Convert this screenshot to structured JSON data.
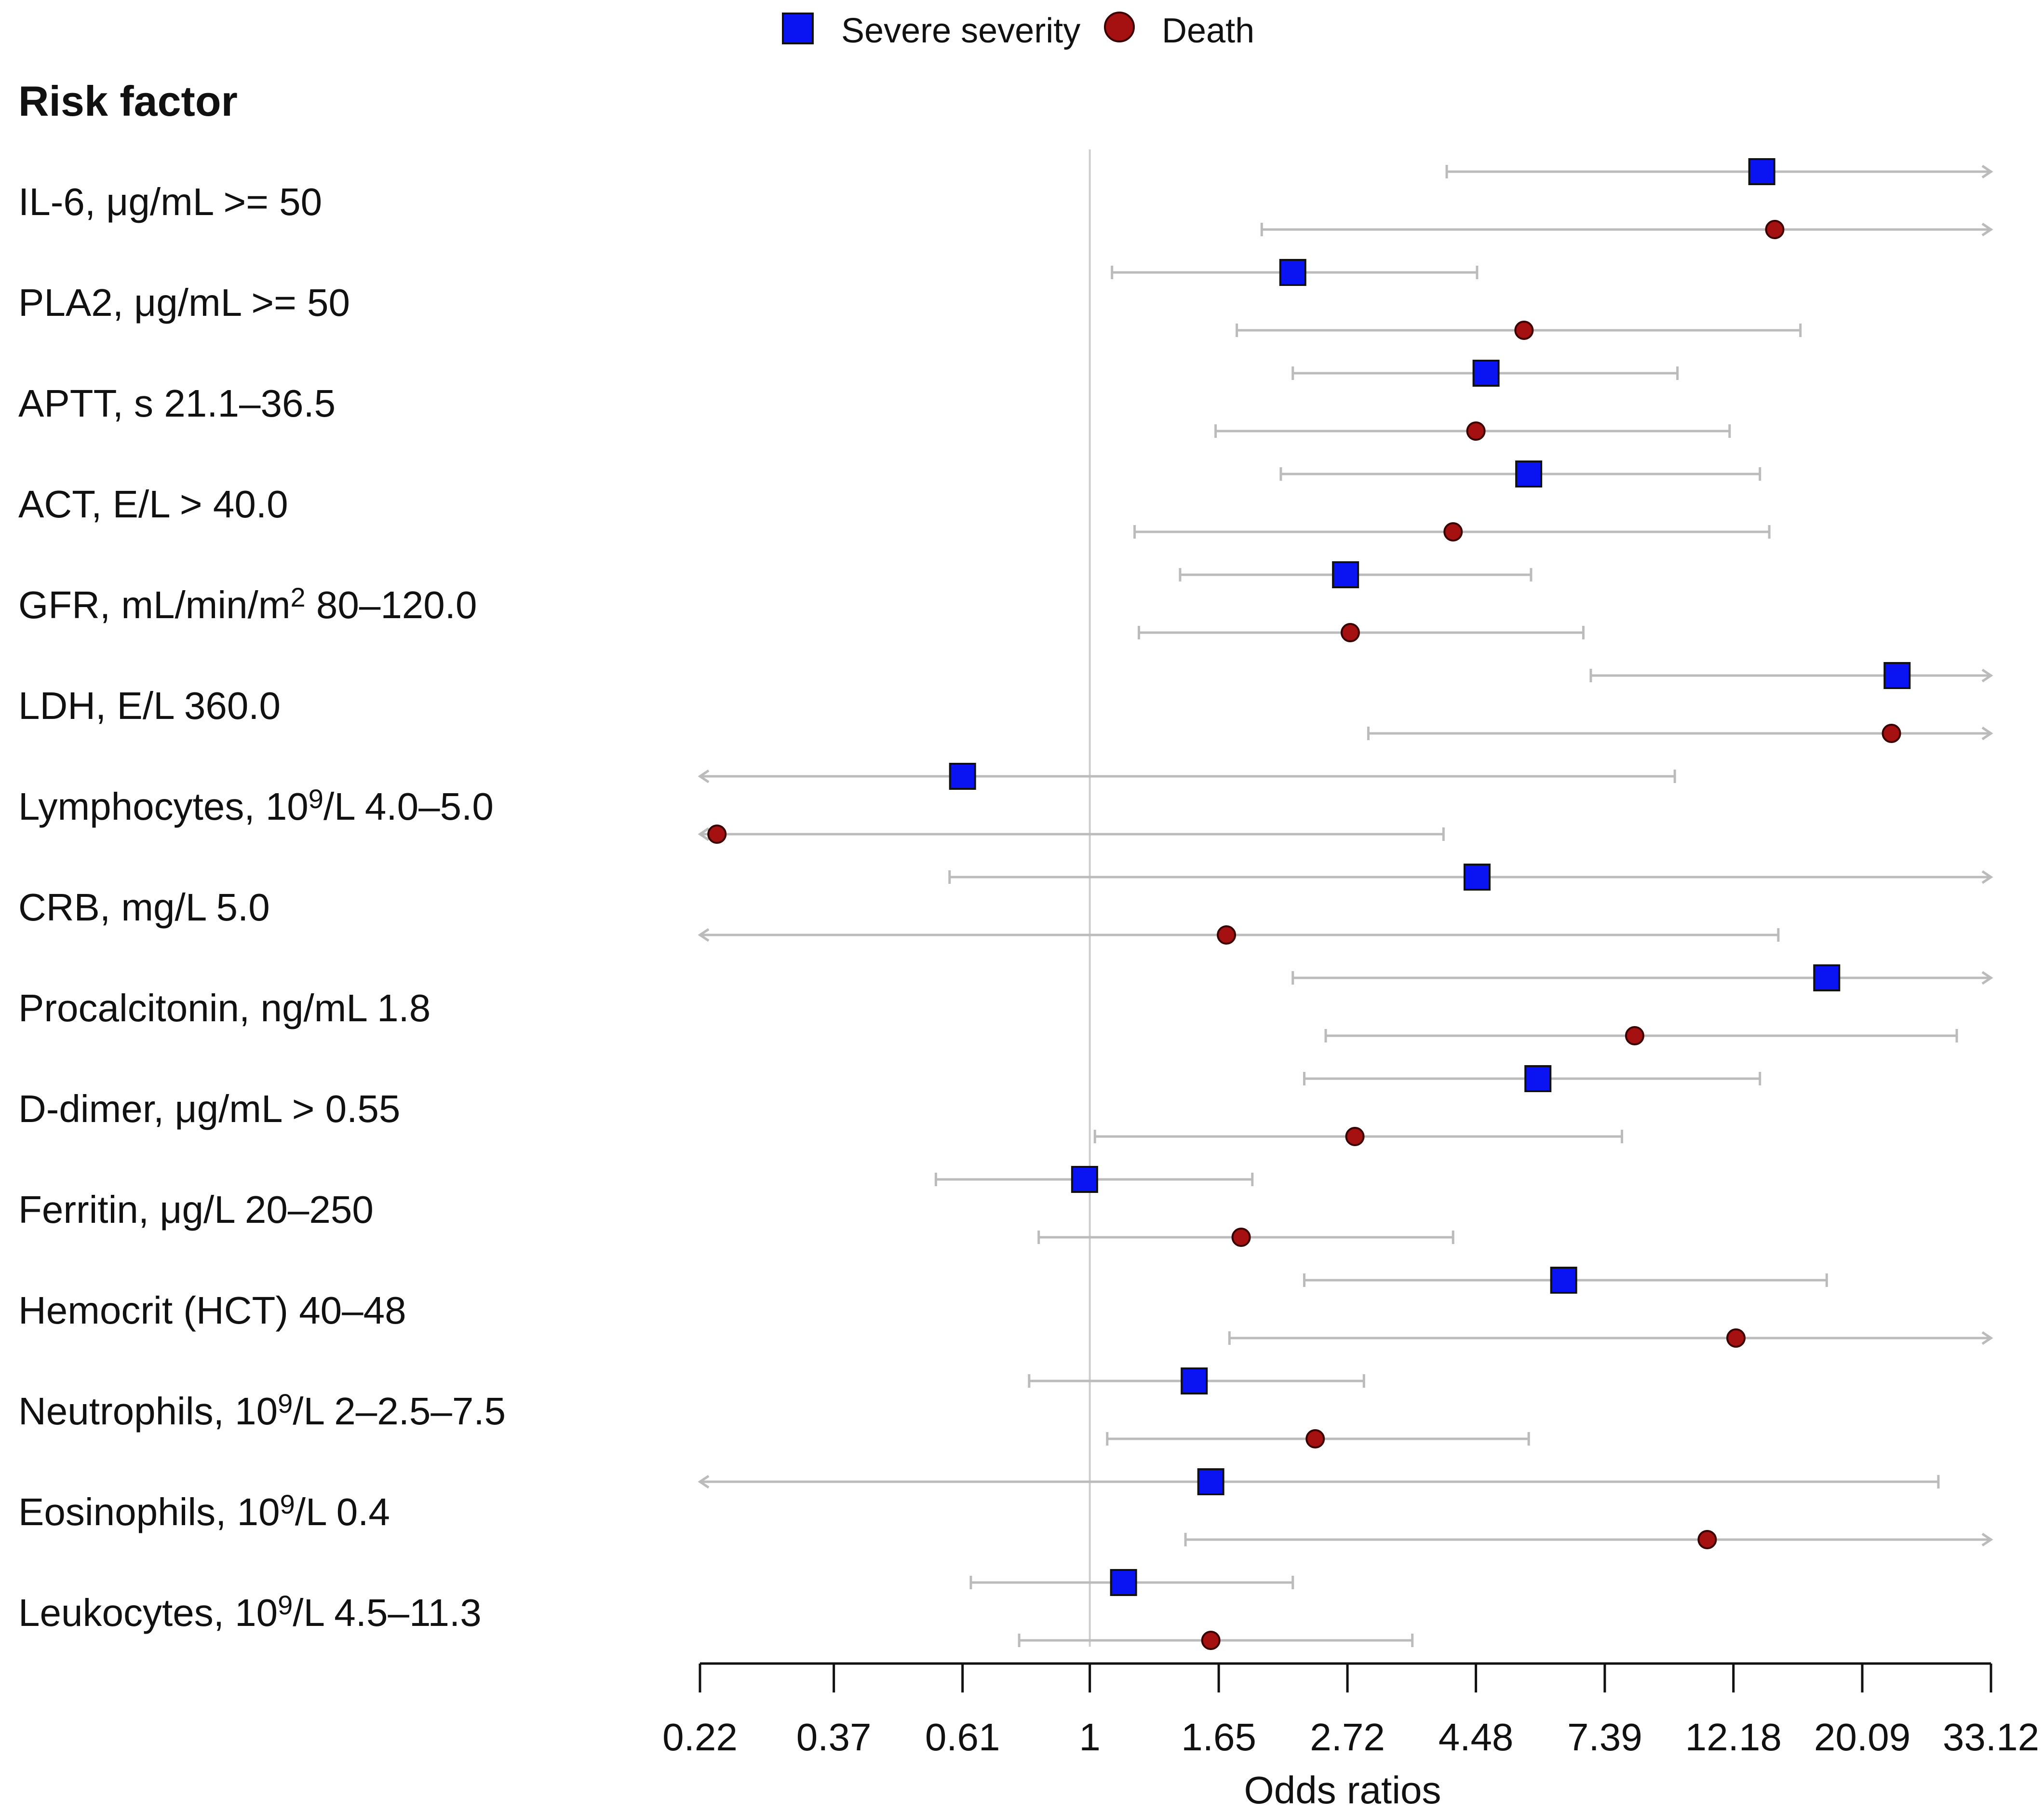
{
  "colors": {
    "severe": "#0a14f2",
    "death": "#a51010",
    "ci_line": "#bbbbbb",
    "ref_line": "#cccccc",
    "axis": "#111111"
  },
  "chart_data": {
    "type": "forest",
    "header": "Risk factor",
    "xlabel": "Odds ratios",
    "x_scale": "log",
    "xlim": [
      0.22,
      33.12
    ],
    "reference_line": 1,
    "ticks": [
      0.22,
      0.37,
      0.61,
      1,
      1.65,
      2.72,
      4.48,
      7.39,
      12.18,
      20.09,
      33.12
    ],
    "tick_labels": [
      "0.22",
      "0.37",
      "0.61",
      "1",
      "1.65",
      "2.72",
      "4.48",
      "7.39",
      "12.18",
      "20.09",
      "33.12"
    ],
    "legend": [
      {
        "series": "severe",
        "label": "Severe severity",
        "marker": "square"
      },
      {
        "series": "death",
        "label": "Death",
        "marker": "circle"
      }
    ],
    "rows": [
      {
        "label": "IL-6, μg/mL >= 50",
        "sup": "",
        "label_tail": "",
        "severe": {
          "or": 13.6,
          "lo": 4.0,
          "hi": 33.12,
          "hi_arrow": true
        },
        "death": {
          "or": 14.3,
          "lo": 1.95,
          "hi": 33.12,
          "hi_arrow": true
        }
      },
      {
        "label": "PLA2, μg/mL >= 50",
        "sup": "",
        "label_tail": "",
        "severe": {
          "or": 2.2,
          "lo": 1.09,
          "hi": 4.5,
          "hi_arrow": false
        },
        "death": {
          "or": 5.4,
          "lo": 1.77,
          "hi": 15.8,
          "hi_arrow": false
        }
      },
      {
        "label": "APTT, s  21.1–36.5",
        "sup": "",
        "label_tail": "",
        "severe": {
          "or": 4.66,
          "lo": 2.2,
          "hi": 9.8,
          "hi_arrow": false
        },
        "death": {
          "or": 4.48,
          "lo": 1.63,
          "hi": 12.0,
          "hi_arrow": false
        }
      },
      {
        "label": "ACT, E/L > 40.0",
        "sup": "",
        "label_tail": "",
        "severe": {
          "or": 5.5,
          "lo": 2.1,
          "hi": 13.5,
          "hi_arrow": false
        },
        "death": {
          "or": 4.1,
          "lo": 1.19,
          "hi": 14.0,
          "hi_arrow": false
        }
      },
      {
        "label": "GFR, mL/min/m",
        "sup": "2",
        "label_tail": " 80–120.0",
        "severe": {
          "or": 2.7,
          "lo": 1.42,
          "hi": 5.55,
          "hi_arrow": false
        },
        "death": {
          "or": 2.75,
          "lo": 1.21,
          "hi": 6.8,
          "hi_arrow": false
        }
      },
      {
        "label": "LDH, E/L 360.0",
        "sup": "",
        "label_tail": "",
        "severe": {
          "or": 23.0,
          "lo": 7.0,
          "hi": 33.12,
          "hi_arrow": true
        },
        "death": {
          "or": 22.5,
          "lo": 2.95,
          "hi": 33.12,
          "hi_arrow": true
        }
      },
      {
        "label": "Lymphocytes, 10",
        "sup": "9",
        "label_tail": "/L 4.0–5.0",
        "severe": {
          "or": 0.61,
          "lo": 0.22,
          "hi": 9.7,
          "lo_arrow": true
        },
        "death": {
          "or": 0.235,
          "lo": 0.22,
          "hi": 3.95,
          "lo_arrow": true
        }
      },
      {
        "label": "CRB, mg/L 5.0",
        "sup": "",
        "label_tail": "",
        "severe": {
          "or": 4.5,
          "lo": 0.58,
          "hi": 33.12,
          "hi_arrow": true
        },
        "death": {
          "or": 1.7,
          "lo": 0.22,
          "hi": 14.5,
          "lo_arrow": true
        }
      },
      {
        "label": "Procalcitonin, ng/mL 1.8",
        "sup": "",
        "label_tail": "",
        "severe": {
          "or": 17.5,
          "lo": 2.2,
          "hi": 33.12,
          "hi_arrow": true
        },
        "death": {
          "or": 8.3,
          "lo": 2.5,
          "hi": 29.0,
          "hi_arrow": false
        }
      },
      {
        "label": "D-dimer, μg/mL > 0.55",
        "sup": "",
        "label_tail": "",
        "severe": {
          "or": 5.7,
          "lo": 2.3,
          "hi": 13.5,
          "hi_arrow": false
        },
        "death": {
          "or": 2.8,
          "lo": 1.02,
          "hi": 7.9,
          "hi_arrow": false
        }
      },
      {
        "label": "Ferritin, μg/L 20–250",
        "sup": "",
        "label_tail": "",
        "severe": {
          "or": 0.98,
          "lo": 0.55,
          "hi": 1.88,
          "hi_arrow": false
        },
        "death": {
          "or": 1.8,
          "lo": 0.82,
          "hi": 4.1,
          "hi_arrow": false
        }
      },
      {
        "label": "Hemocrit (HCT) 40–48",
        "sup": "",
        "label_tail": "",
        "severe": {
          "or": 6.3,
          "lo": 2.3,
          "hi": 17.5,
          "hi_arrow": false
        },
        "death": {
          "or": 12.3,
          "lo": 1.72,
          "hi": 33.12,
          "hi_arrow": true
        }
      },
      {
        "label": "Neutrophils, 10",
        "sup": "9",
        "label_tail": "/L 2–2.5–7.5",
        "severe": {
          "or": 1.5,
          "lo": 0.79,
          "hi": 2.9,
          "hi_arrow": false
        },
        "death": {
          "or": 2.4,
          "lo": 1.07,
          "hi": 5.5,
          "hi_arrow": false
        }
      },
      {
        "label": "Eosinophils, 10",
        "sup": "9",
        "label_tail": "/L 0.4",
        "severe": {
          "or": 1.6,
          "lo": 0.22,
          "hi": 27.0,
          "lo_arrow": true
        },
        "death": {
          "or": 11.0,
          "lo": 1.45,
          "hi": 33.12,
          "hi_arrow": true
        }
      },
      {
        "label": "Leukocytes, 10",
        "sup": "9",
        "label_tail": "/L 4.5–11.3",
        "severe": {
          "or": 1.14,
          "lo": 0.63,
          "hi": 2.2,
          "hi_arrow": false
        },
        "death": {
          "or": 1.6,
          "lo": 0.76,
          "hi": 3.5,
          "hi_arrow": false
        }
      }
    ]
  }
}
